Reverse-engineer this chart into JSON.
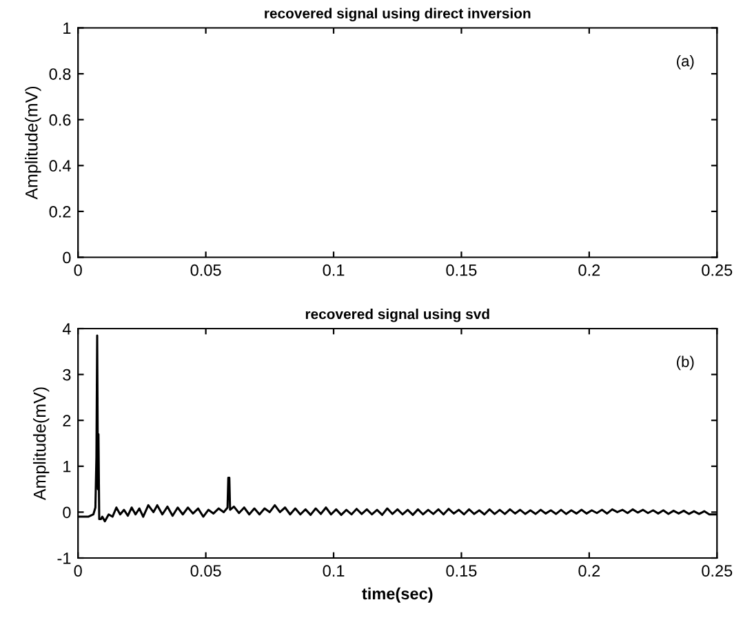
{
  "chart_data": [
    {
      "type": "line",
      "title": "recovered signal using direct inversion",
      "ylabel": "Amplitude(mV)",
      "annotations": [
        "(a)"
      ],
      "xlim": [
        0,
        0.25
      ],
      "ylim": [
        0,
        1
      ],
      "xticks": [
        0,
        0.05,
        0.1,
        0.15,
        0.2,
        0.25
      ],
      "yticks": [
        0,
        0.2,
        0.4,
        0.6,
        0.8,
        1
      ],
      "grid": false
    },
    {
      "type": "line",
      "title": "recovered signal using svd",
      "ylabel": "Amplitude(mV)",
      "xlabel": "time(sec)",
      "annotations": [
        "(b)"
      ],
      "xlim": [
        0,
        0.25
      ],
      "ylim": [
        -1,
        4
      ],
      "xticks": [
        0,
        0.05,
        0.1,
        0.15,
        0.2,
        0.25
      ],
      "yticks": [
        -1,
        0,
        1,
        2,
        3,
        4
      ],
      "grid": false,
      "series": [
        {
          "color": "#000000",
          "x": [
            0,
            0.004,
            0.006,
            0.0068,
            0.0072,
            0.0075,
            0.0078,
            0.008,
            0.0083,
            0.009,
            0.0095,
            0.0105,
            0.012,
            0.0135,
            0.015,
            0.0165,
            0.018,
            0.0195,
            0.021,
            0.0225,
            0.024,
            0.0255,
            0.0275,
            0.0295,
            0.031,
            0.033,
            0.035,
            0.037,
            0.039,
            0.041,
            0.043,
            0.045,
            0.047,
            0.049,
            0.051,
            0.053,
            0.055,
            0.057,
            0.0585,
            0.0588,
            0.0592,
            0.0595,
            0.061,
            0.063,
            0.065,
            0.067,
            0.069,
            0.071,
            0.073,
            0.075,
            0.077,
            0.079,
            0.081,
            0.083,
            0.085,
            0.087,
            0.089,
            0.091,
            0.093,
            0.095,
            0.097,
            0.099,
            0.101,
            0.103,
            0.105,
            0.107,
            0.109,
            0.111,
            0.113,
            0.115,
            0.117,
            0.119,
            0.121,
            0.123,
            0.125,
            0.127,
            0.129,
            0.131,
            0.133,
            0.135,
            0.137,
            0.139,
            0.141,
            0.143,
            0.145,
            0.147,
            0.149,
            0.151,
            0.153,
            0.155,
            0.157,
            0.159,
            0.161,
            0.163,
            0.165,
            0.167,
            0.169,
            0.171,
            0.173,
            0.175,
            0.177,
            0.179,
            0.181,
            0.183,
            0.185,
            0.187,
            0.189,
            0.191,
            0.193,
            0.195,
            0.197,
            0.199,
            0.201,
            0.203,
            0.205,
            0.207,
            0.209,
            0.211,
            0.213,
            0.215,
            0.217,
            0.219,
            0.221,
            0.223,
            0.225,
            0.227,
            0.229,
            0.231,
            0.233,
            0.235,
            0.237,
            0.239,
            0.241,
            0.243,
            0.245,
            0.247,
            0.25
          ],
          "values": [
            -0.1,
            -0.1,
            -0.05,
            0.1,
            1.2,
            3.85,
            0.5,
            1.7,
            -0.15,
            -0.15,
            -0.1,
            -0.2,
            -0.05,
            -0.1,
            0.1,
            -0.05,
            0.05,
            -0.08,
            0.1,
            -0.05,
            0.08,
            -0.1,
            0.15,
            0.0,
            0.15,
            -0.05,
            0.12,
            -0.08,
            0.1,
            -0.05,
            0.1,
            -0.03,
            0.08,
            -0.1,
            0.05,
            -0.03,
            0.08,
            0.0,
            0.1,
            0.75,
            0.75,
            0.05,
            0.12,
            -0.02,
            0.1,
            -0.05,
            0.08,
            -0.05,
            0.08,
            0.0,
            0.15,
            0.0,
            0.1,
            -0.05,
            0.08,
            -0.05,
            0.06,
            -0.06,
            0.08,
            -0.04,
            0.1,
            -0.05,
            0.06,
            -0.06,
            0.05,
            -0.05,
            0.07,
            -0.04,
            0.06,
            -0.05,
            0.05,
            -0.06,
            0.08,
            -0.04,
            0.06,
            -0.05,
            0.05,
            -0.06,
            0.06,
            -0.05,
            0.05,
            -0.04,
            0.06,
            -0.05,
            0.07,
            -0.03,
            0.05,
            -0.05,
            0.06,
            -0.04,
            0.04,
            -0.05,
            0.06,
            -0.04,
            0.05,
            -0.04,
            0.06,
            -0.03,
            0.05,
            -0.04,
            0.04,
            -0.04,
            0.05,
            -0.03,
            0.04,
            -0.04,
            0.05,
            -0.04,
            0.04,
            -0.03,
            0.05,
            -0.03,
            0.04,
            -0.02,
            0.05,
            -0.03,
            0.06,
            0.0,
            0.05,
            -0.02,
            0.06,
            -0.01,
            0.05,
            -0.02,
            0.04,
            -0.03,
            0.04,
            -0.04,
            0.03,
            -0.03,
            0.03,
            -0.04,
            0.02,
            -0.04,
            0.02,
            -0.05,
            -0.05
          ]
        }
      ]
    }
  ]
}
